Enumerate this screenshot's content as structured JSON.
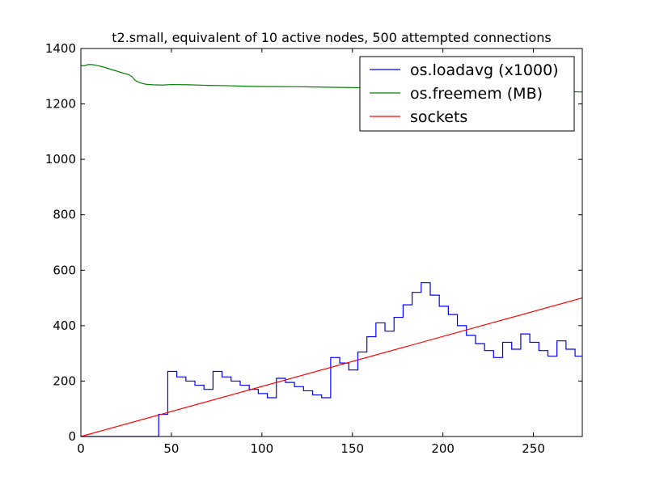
{
  "chart_data": {
    "type": "line",
    "title": "t2.small, equivalent of 10 active nodes, 500 attempted connections",
    "xlabel": "",
    "ylabel": "",
    "xlim": [
      0,
      277
    ],
    "ylim": [
      0,
      1400
    ],
    "xticks": [
      0,
      50,
      100,
      150,
      200,
      250
    ],
    "yticks": [
      0,
      200,
      400,
      600,
      800,
      1000,
      1200,
      1400
    ],
    "grid": false,
    "legend_position": "top-right",
    "series": [
      {
        "name": "os.loadavg (x1000)",
        "color": "#0000ff",
        "step": true,
        "x": [
          0,
          43,
          43,
          48,
          48,
          53,
          53,
          58,
          58,
          63,
          63,
          68,
          68,
          73,
          73,
          78,
          78,
          83,
          83,
          88,
          88,
          93,
          93,
          98,
          98,
          103,
          103,
          108,
          108,
          113,
          113,
          118,
          118,
          123,
          123,
          128,
          128,
          133,
          133,
          138,
          138,
          143,
          143,
          148,
          148,
          153,
          153,
          158,
          158,
          163,
          163,
          168,
          168,
          173,
          173,
          178,
          178,
          183,
          183,
          188,
          188,
          193,
          193,
          198,
          198,
          203,
          203,
          208,
          208,
          213,
          213,
          218,
          218,
          223,
          223,
          228,
          228,
          233,
          233,
          238,
          238,
          243,
          243,
          248,
          248,
          253,
          253,
          258,
          258,
          263,
          263,
          268,
          268,
          273,
          273,
          277
        ],
        "y": [
          0,
          0,
          80,
          80,
          235,
          235,
          215,
          215,
          200,
          200,
          185,
          185,
          170,
          170,
          235,
          235,
          215,
          215,
          200,
          200,
          185,
          185,
          170,
          170,
          155,
          155,
          140,
          140,
          210,
          210,
          195,
          195,
          180,
          180,
          165,
          165,
          150,
          150,
          140,
          140,
          285,
          285,
          265,
          265,
          240,
          240,
          305,
          305,
          360,
          360,
          410,
          410,
          380,
          380,
          430,
          430,
          475,
          475,
          520,
          520,
          555,
          555,
          510,
          510,
          470,
          470,
          440,
          440,
          400,
          400,
          365,
          365,
          335,
          335,
          310,
          310,
          285,
          285,
          340,
          340,
          315,
          315,
          370,
          370,
          340,
          340,
          310,
          310,
          290,
          290,
          345,
          345,
          315,
          315,
          290,
          290
        ]
      },
      {
        "name": "os.freemem (MB)",
        "color": "#008000",
        "step": false,
        "x": [
          0,
          2,
          4,
          6,
          8,
          10,
          12,
          14,
          16,
          18,
          20,
          22,
          24,
          26,
          28,
          30,
          32,
          34,
          36,
          40,
          45,
          50,
          60,
          70,
          80,
          90,
          100,
          120,
          140,
          160,
          180,
          200,
          220,
          240,
          260,
          277
        ],
        "y": [
          1338,
          1338,
          1342,
          1342,
          1340,
          1337,
          1334,
          1330,
          1326,
          1322,
          1318,
          1314,
          1310,
          1307,
          1300,
          1285,
          1278,
          1274,
          1271,
          1269,
          1268,
          1270,
          1269,
          1267,
          1266,
          1264,
          1263,
          1262,
          1260,
          1258,
          1256,
          1254,
          1252,
          1249,
          1246,
          1243
        ]
      },
      {
        "name": "sockets",
        "color": "#ff0000",
        "step": false,
        "x": [
          0,
          277
        ],
        "y": [
          0,
          500
        ]
      }
    ]
  }
}
